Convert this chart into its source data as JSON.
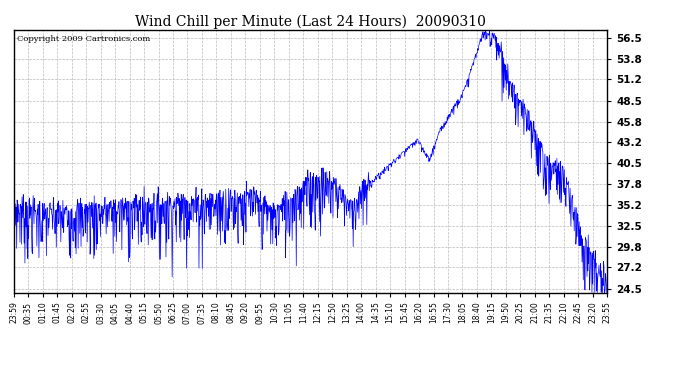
{
  "title": "Wind Chill per Minute (Last 24 Hours)  20090310",
  "copyright_text": "Copyright 2009 Cartronics.com",
  "line_color": "#0000ff",
  "bg_color": "#ffffff",
  "grid_color": "#bbbbbb",
  "yticks": [
    24.5,
    27.2,
    29.8,
    32.5,
    35.2,
    37.8,
    40.5,
    43.2,
    45.8,
    48.5,
    51.2,
    53.8,
    56.5
  ],
  "ylim": [
    24.0,
    57.5
  ],
  "xtick_labels": [
    "23:59",
    "00:35",
    "01:10",
    "01:45",
    "02:20",
    "02:55",
    "03:30",
    "04:05",
    "04:40",
    "05:15",
    "05:50",
    "06:25",
    "07:00",
    "07:35",
    "08:10",
    "08:45",
    "09:20",
    "09:55",
    "10:30",
    "11:05",
    "11:40",
    "12:15",
    "12:50",
    "13:25",
    "14:00",
    "14:35",
    "15:10",
    "15:45",
    "16:20",
    "16:55",
    "17:30",
    "18:05",
    "18:40",
    "19:15",
    "19:50",
    "20:25",
    "21:00",
    "21:35",
    "22:10",
    "22:45",
    "23:20",
    "23:55"
  ]
}
